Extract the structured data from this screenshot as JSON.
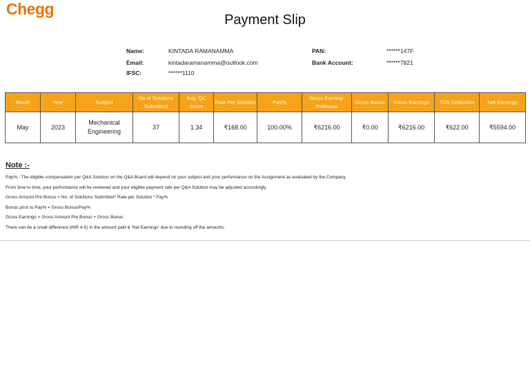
{
  "brand": {
    "logo": "Chegg",
    "color": "#eb7100"
  },
  "title": "Payment Slip",
  "info": {
    "name_label": "Name:",
    "name": "KINTADA RAMANAMMA",
    "email_label": "Email:",
    "email": "kintadaramanamma@outlook.com",
    "ifsc_label": "IFSC:",
    "ifsc": "******1110",
    "pan_label": "PAN:",
    "pan": "******147F",
    "bank_label": "Bank Account:",
    "bank": "******7821"
  },
  "table": {
    "header_color": "#f7a21b",
    "headers": [
      "Month",
      "Year",
      "Subject",
      "No.of Solutions Submitted",
      "Avg. QC Score",
      "Rate Per Solution",
      "Pay%",
      "Gross Earning-Prebonus",
      "Gross Bonus",
      "Gross Earnings",
      "TDS Deduction",
      "Net Earnings"
    ],
    "row": [
      "May",
      "2023",
      "Mechanical Engineering",
      "37",
      "1.34",
      "₹168.00",
      "100.00%",
      "₹6216.00",
      "₹0.00",
      "₹6216.00",
      "₹622.00",
      "₹5594.00"
    ]
  },
  "note": {
    "heading": "Note :-",
    "lines": [
      "Pay% - The eligible compensation per Q&A Solution on the Q&A Board will depend on your subject and your performance on the Assignment as evaluated by the Company.",
      "From time to time, your performance will be reviewed and your eligible payment rate per Q&A Solution may be adjusted accordingly.",
      "Gross Amount Pre Bonus = No. of Solutions Submitted* Rate per Solution * Pay%",
      "Bonus prior to Pay% = Gross Bonus/Pay%",
      "Gross Earnings = Gross Amount Pre Bonus + Gross Bonus",
      "There can be a small difference (INR 4-5) in the amount paid & 'Net Earnings' due to rounding off the amounts."
    ]
  }
}
